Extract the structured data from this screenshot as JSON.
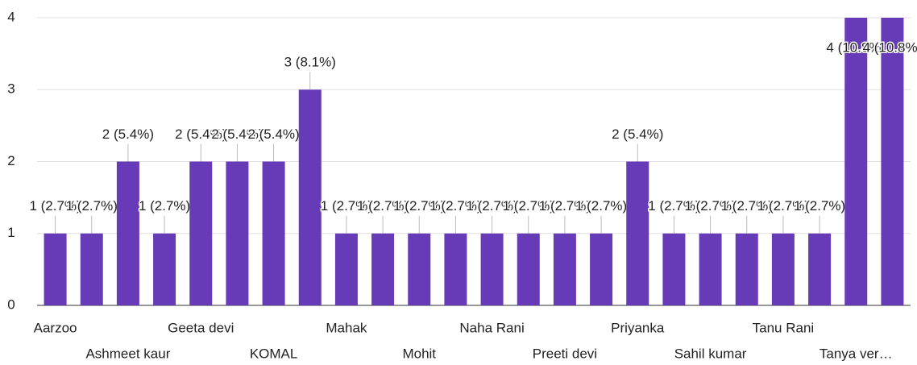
{
  "chart_data": {
    "type": "bar",
    "color": "#673ab7",
    "categories": [
      "Aarzoo",
      null,
      "Ashmeet kaur",
      null,
      "Geeta devi",
      null,
      "KOMAL",
      null,
      "Mahak",
      null,
      "Mohit",
      null,
      "Naha Rani",
      null,
      "Preeti devi",
      null,
      "Priyanka",
      null,
      "Sahil kumar",
      null,
      "Tanu Rani",
      null,
      "Tanya ver…",
      null
    ],
    "values": [
      1,
      1,
      2,
      1,
      2,
      2,
      2,
      3,
      1,
      1,
      1,
      1,
      1,
      1,
      1,
      1,
      2,
      1,
      1,
      1,
      1,
      1,
      4,
      4
    ],
    "value_labels": [
      "1 (2.7%)",
      "1 (2.7%)",
      "2 (5.4%)",
      "1 (2.7%)",
      "2 (5.4%)",
      "2 (5.4%)",
      "2 (5.4%)",
      "3 (8.1%)",
      "1 (2.7%)",
      "1 (2.7%)",
      "1 (2.7%)",
      "1 (2.7%)",
      "1 (2.7%)",
      "1 (2.7%)",
      "1 (2.7%)",
      "1 (2.7%)",
      "2 (5.4%)",
      "1 (2.7%)",
      "1 (2.7%)",
      "1 (2.7%)",
      "1 (2.7%)",
      "1 (2.7%)",
      "4 (10.8%)",
      "4 (10.8%)"
    ],
    "ylim": [
      0,
      4
    ],
    "yticks": [
      0,
      1,
      2,
      3,
      4
    ],
    "grid": true
  }
}
